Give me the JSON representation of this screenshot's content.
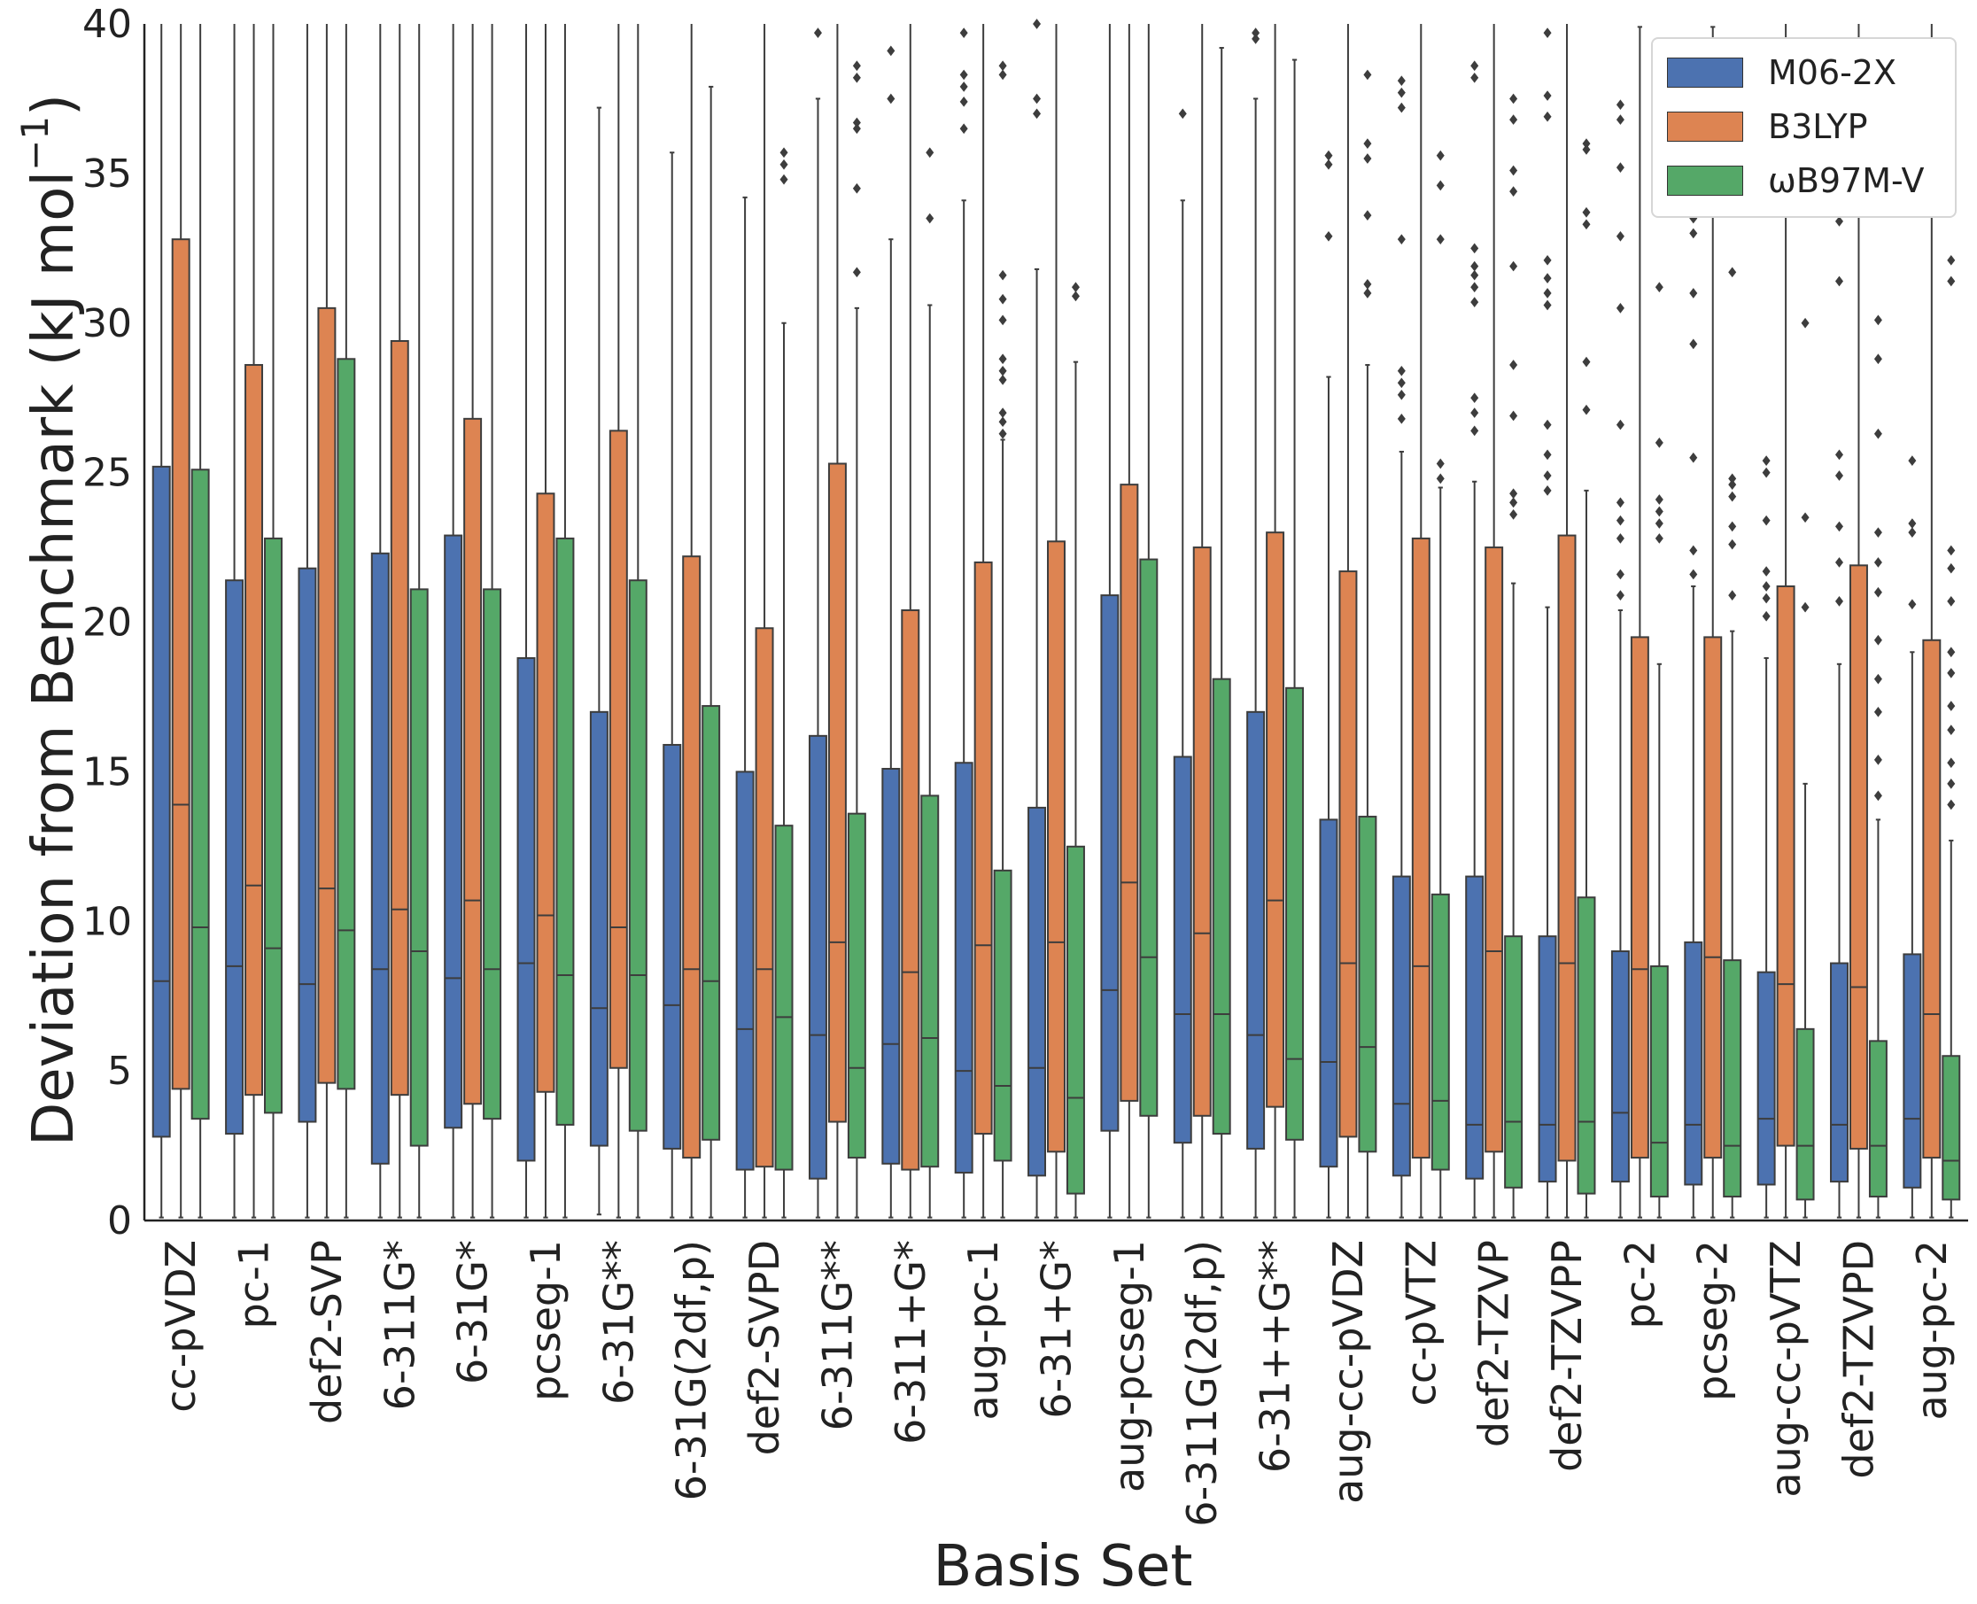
{
  "chart_data": {
    "type": "box",
    "title": "",
    "xlabel": "Basis Set",
    "ylabel": "Deviation from Benchmark (kJ mol",
    "ylabel_sup": "−1",
    "ylabel_close": ")",
    "ylim": [
      0,
      40
    ],
    "yticks": [
      0,
      5,
      10,
      15,
      20,
      25,
      30,
      35,
      40
    ],
    "legend_position": "top-right",
    "categories": [
      "cc-pVDZ",
      "pc-1",
      "def2-SVP",
      "6-311G*",
      "6-31G*",
      "pcseg-1",
      "6-31G**",
      "6-31G(2df,p)",
      "def2-SVPD",
      "6-311G**",
      "6-311+G*",
      "aug-pc-1",
      "6-31+G*",
      "aug-pcseg-1",
      "6-311G(2df,p)",
      "6-31++G**",
      "aug-cc-pVDZ",
      "cc-pVTZ",
      "def2-TZVP",
      "def2-TZVPP",
      "pc-2",
      "pcseg-2",
      "aug-cc-pVTZ",
      "def2-TZVPD",
      "aug-pc-2"
    ],
    "series": [
      {
        "name": "M06-2X",
        "color": "#4c72b0",
        "boxes": [
          {
            "q1": 2.8,
            "median": 8.0,
            "q3": 25.2,
            "whisker_low": 0.1,
            "whisker_high": 40,
            "outliers": []
          },
          {
            "q1": 2.9,
            "median": 8.5,
            "q3": 21.4,
            "whisker_low": 0.1,
            "whisker_high": 40,
            "outliers": []
          },
          {
            "q1": 3.3,
            "median": 7.9,
            "q3": 21.8,
            "whisker_low": 0.1,
            "whisker_high": 40,
            "outliers": []
          },
          {
            "q1": 1.9,
            "median": 8.4,
            "q3": 22.3,
            "whisker_low": 0.1,
            "whisker_high": 40,
            "outliers": []
          },
          {
            "q1": 3.1,
            "median": 8.1,
            "q3": 22.9,
            "whisker_low": 0.1,
            "whisker_high": 40,
            "outliers": []
          },
          {
            "q1": 2.0,
            "median": 8.6,
            "q3": 18.8,
            "whisker_low": 0.1,
            "whisker_high": 40,
            "outliers": []
          },
          {
            "q1": 2.5,
            "median": 7.1,
            "q3": 17.0,
            "whisker_low": 0.2,
            "whisker_high": 37.2,
            "outliers": []
          },
          {
            "q1": 2.4,
            "median": 7.2,
            "q3": 15.9,
            "whisker_low": 0.1,
            "whisker_high": 35.7,
            "outliers": []
          },
          {
            "q1": 1.7,
            "median": 6.4,
            "q3": 15.0,
            "whisker_low": 0.1,
            "whisker_high": 34.2,
            "outliers": []
          },
          {
            "q1": 1.4,
            "median": 6.2,
            "q3": 16.2,
            "whisker_low": 0.1,
            "whisker_high": 37.5,
            "outliers": [
              39.7
            ]
          },
          {
            "q1": 1.9,
            "median": 5.9,
            "q3": 15.1,
            "whisker_low": 0.1,
            "whisker_high": 32.8,
            "outliers": [
              37.5,
              39.1
            ]
          },
          {
            "q1": 1.6,
            "median": 5.0,
            "q3": 15.3,
            "whisker_low": 0.1,
            "whisker_high": 34.1,
            "outliers": [
              36.5,
              37.4,
              37.9,
              38.3,
              39.7
            ]
          },
          {
            "q1": 1.5,
            "median": 5.1,
            "q3": 13.8,
            "whisker_low": 0.1,
            "whisker_high": 31.8,
            "outliers": [
              37.0,
              37.5,
              40.0
            ]
          },
          {
            "q1": 3.0,
            "median": 7.7,
            "q3": 20.9,
            "whisker_low": 0.1,
            "whisker_high": 40,
            "outliers": []
          },
          {
            "q1": 2.6,
            "median": 6.9,
            "q3": 15.5,
            "whisker_low": 0.1,
            "whisker_high": 34.1,
            "outliers": [
              37.0
            ]
          },
          {
            "q1": 2.4,
            "median": 6.2,
            "q3": 17.0,
            "whisker_low": 0.1,
            "whisker_high": 37.5,
            "outliers": [
              39.5,
              39.7
            ]
          },
          {
            "q1": 1.8,
            "median": 5.3,
            "q3": 13.4,
            "whisker_low": 0.1,
            "whisker_high": 28.2,
            "outliers": [
              32.9,
              35.3,
              35.6
            ]
          },
          {
            "q1": 1.5,
            "median": 3.9,
            "q3": 11.5,
            "whisker_low": 0.1,
            "whisker_high": 25.7,
            "outliers": [
              26.8,
              27.6,
              28.0,
              28.4,
              32.8,
              37.2,
              37.7,
              38.1
            ]
          },
          {
            "q1": 1.4,
            "median": 3.2,
            "q3": 11.5,
            "whisker_low": 0.1,
            "whisker_high": 24.7,
            "outliers": [
              26.4,
              27.0,
              27.5,
              30.7,
              31.2,
              31.6,
              31.9,
              32.5,
              38.2,
              38.6
            ]
          },
          {
            "q1": 1.3,
            "median": 3.2,
            "q3": 9.5,
            "whisker_low": 0.1,
            "whisker_high": 20.5,
            "outliers": [
              24.4,
              24.9,
              25.6,
              26.6,
              30.6,
              31.0,
              31.5,
              32.1,
              36.9,
              37.6,
              39.7
            ]
          },
          {
            "q1": 1.3,
            "median": 3.6,
            "q3": 9.0,
            "whisker_low": 0.1,
            "whisker_high": 20.4,
            "outliers": [
              20.9,
              21.6,
              22.8,
              23.4,
              24.0,
              26.6,
              30.5,
              32.9,
              35.2,
              36.8,
              37.3
            ]
          },
          {
            "q1": 1.2,
            "median": 3.2,
            "q3": 9.3,
            "whisker_low": 0.1,
            "whisker_high": 21.2,
            "outliers": [
              21.6,
              22.4,
              25.5,
              29.3,
              31.0,
              33.0,
              33.5,
              35.4,
              36.1
            ]
          },
          {
            "q1": 1.2,
            "median": 3.4,
            "q3": 8.3,
            "whisker_low": 0.1,
            "whisker_high": 18.8,
            "outliers": [
              20.2,
              20.8,
              21.2,
              21.7,
              23.4,
              25.0,
              25.4
            ]
          },
          {
            "q1": 1.3,
            "median": 3.2,
            "q3": 8.6,
            "whisker_low": 0.1,
            "whisker_high": 18.6,
            "outliers": [
              20.7,
              22.0,
              23.2,
              24.9,
              25.6,
              31.4,
              33.4
            ]
          },
          {
            "q1": 1.1,
            "median": 3.4,
            "q3": 8.9,
            "whisker_low": 0.1,
            "whisker_high": 19.0,
            "outliers": [
              20.6,
              23.0,
              23.3,
              25.4
            ]
          }
        ]
      },
      {
        "name": "B3LYP",
        "color": "#dd8452",
        "boxes": [
          {
            "q1": 4.4,
            "median": 13.9,
            "q3": 32.8,
            "whisker_low": 0.1,
            "whisker_high": 40,
            "outliers": []
          },
          {
            "q1": 4.2,
            "median": 11.2,
            "q3": 28.6,
            "whisker_low": 0.1,
            "whisker_high": 40,
            "outliers": []
          },
          {
            "q1": 4.6,
            "median": 11.1,
            "q3": 30.5,
            "whisker_low": 0.1,
            "whisker_high": 40,
            "outliers": []
          },
          {
            "q1": 4.2,
            "median": 10.4,
            "q3": 29.4,
            "whisker_low": 0.1,
            "whisker_high": 40,
            "outliers": []
          },
          {
            "q1": 3.9,
            "median": 10.7,
            "q3": 26.8,
            "whisker_low": 0.1,
            "whisker_high": 40,
            "outliers": []
          },
          {
            "q1": 4.3,
            "median": 10.2,
            "q3": 24.3,
            "whisker_low": 0.1,
            "whisker_high": 40,
            "outliers": []
          },
          {
            "q1": 5.1,
            "median": 9.8,
            "q3": 26.4,
            "whisker_low": 0.1,
            "whisker_high": 40,
            "outliers": []
          },
          {
            "q1": 2.1,
            "median": 8.4,
            "q3": 22.2,
            "whisker_low": 0.1,
            "whisker_high": 40,
            "outliers": []
          },
          {
            "q1": 1.8,
            "median": 8.4,
            "q3": 19.8,
            "whisker_low": 0.1,
            "whisker_high": 40,
            "outliers": []
          },
          {
            "q1": 3.3,
            "median": 9.3,
            "q3": 25.3,
            "whisker_low": 0.1,
            "whisker_high": 40,
            "outliers": []
          },
          {
            "q1": 1.7,
            "median": 8.3,
            "q3": 20.4,
            "whisker_low": 0.1,
            "whisker_high": 40,
            "outliers": []
          },
          {
            "q1": 2.9,
            "median": 9.2,
            "q3": 22.0,
            "whisker_low": 0.1,
            "whisker_high": 40,
            "outliers": []
          },
          {
            "q1": 2.3,
            "median": 9.3,
            "q3": 22.7,
            "whisker_low": 0.1,
            "whisker_high": 40,
            "outliers": []
          },
          {
            "q1": 4.0,
            "median": 11.3,
            "q3": 24.6,
            "whisker_low": 0.1,
            "whisker_high": 40,
            "outliers": []
          },
          {
            "q1": 3.5,
            "median": 9.6,
            "q3": 22.5,
            "whisker_low": 0.1,
            "whisker_high": 40,
            "outliers": []
          },
          {
            "q1": 3.8,
            "median": 10.7,
            "q3": 23.0,
            "whisker_low": 0.1,
            "whisker_high": 40,
            "outliers": []
          },
          {
            "q1": 2.8,
            "median": 8.6,
            "q3": 21.7,
            "whisker_low": 0.1,
            "whisker_high": 40,
            "outliers": []
          },
          {
            "q1": 2.1,
            "median": 8.5,
            "q3": 22.8,
            "whisker_low": 0.1,
            "whisker_high": 40,
            "outliers": []
          },
          {
            "q1": 2.3,
            "median": 9.0,
            "q3": 22.5,
            "whisker_low": 0.1,
            "whisker_high": 40,
            "outliers": []
          },
          {
            "q1": 2.0,
            "median": 8.6,
            "q3": 22.9,
            "whisker_low": 0.1,
            "whisker_high": 40,
            "outliers": []
          },
          {
            "q1": 2.1,
            "median": 8.4,
            "q3": 19.5,
            "whisker_low": 0.1,
            "whisker_high": 39.9,
            "outliers": []
          },
          {
            "q1": 2.1,
            "median": 8.8,
            "q3": 19.5,
            "whisker_low": 0.1,
            "whisker_high": 39.9,
            "outliers": []
          },
          {
            "q1": 2.5,
            "median": 7.9,
            "q3": 21.2,
            "whisker_low": 0.1,
            "whisker_high": 40,
            "outliers": []
          },
          {
            "q1": 2.4,
            "median": 7.8,
            "q3": 21.9,
            "whisker_low": 0.1,
            "whisker_high": 40,
            "outliers": []
          },
          {
            "q1": 2.1,
            "median": 6.9,
            "q3": 19.4,
            "whisker_low": 0.1,
            "whisker_high": 40,
            "outliers": []
          }
        ]
      },
      {
        "name": "ωB97M-V",
        "color": "#55a868",
        "boxes": [
          {
            "q1": 3.4,
            "median": 9.8,
            "q3": 25.1,
            "whisker_low": 0.1,
            "whisker_high": 40,
            "outliers": []
          },
          {
            "q1": 3.6,
            "median": 9.1,
            "q3": 22.8,
            "whisker_low": 0.1,
            "whisker_high": 40,
            "outliers": []
          },
          {
            "q1": 4.4,
            "median": 9.7,
            "q3": 28.8,
            "whisker_low": 0.1,
            "whisker_high": 40,
            "outliers": []
          },
          {
            "q1": 2.5,
            "median": 9.0,
            "q3": 21.1,
            "whisker_low": 0.1,
            "whisker_high": 40,
            "outliers": []
          },
          {
            "q1": 3.4,
            "median": 8.4,
            "q3": 21.1,
            "whisker_low": 0.1,
            "whisker_high": 40,
            "outliers": []
          },
          {
            "q1": 3.2,
            "median": 8.2,
            "q3": 22.8,
            "whisker_low": 0.1,
            "whisker_high": 40,
            "outliers": []
          },
          {
            "q1": 3.0,
            "median": 8.2,
            "q3": 21.4,
            "whisker_low": 0.1,
            "whisker_high": 40,
            "outliers": []
          },
          {
            "q1": 2.7,
            "median": 8.0,
            "q3": 17.2,
            "whisker_low": 0.1,
            "whisker_high": 37.9,
            "outliers": []
          },
          {
            "q1": 1.7,
            "median": 6.8,
            "q3": 13.2,
            "whisker_low": 0.1,
            "whisker_high": 30.0,
            "outliers": [
              34.8,
              35.3,
              35.7
            ]
          },
          {
            "q1": 2.1,
            "median": 5.1,
            "q3": 13.6,
            "whisker_low": 0.1,
            "whisker_high": 30.5,
            "outliers": [
              31.7,
              34.5,
              36.5,
              36.7,
              38.2,
              38.6
            ]
          },
          {
            "q1": 1.8,
            "median": 6.1,
            "q3": 14.2,
            "whisker_low": 0.1,
            "whisker_high": 30.6,
            "outliers": [
              33.5,
              35.7
            ]
          },
          {
            "q1": 2.0,
            "median": 4.5,
            "q3": 11.7,
            "whisker_low": 0.1,
            "whisker_high": 26.1,
            "outliers": [
              26.3,
              26.7,
              27.0,
              28.1,
              28.4,
              28.8,
              30.1,
              30.8,
              31.6,
              38.3,
              38.6
            ]
          },
          {
            "q1": 0.9,
            "median": 4.1,
            "q3": 12.5,
            "whisker_low": 0.1,
            "whisker_high": 28.7,
            "outliers": [
              30.9,
              31.2
            ]
          },
          {
            "q1": 3.5,
            "median": 8.8,
            "q3": 22.1,
            "whisker_low": 0.1,
            "whisker_high": 40,
            "outliers": []
          },
          {
            "q1": 2.9,
            "median": 6.9,
            "q3": 18.1,
            "whisker_low": 0.1,
            "whisker_high": 39.2,
            "outliers": []
          },
          {
            "q1": 2.7,
            "median": 5.4,
            "q3": 17.8,
            "whisker_low": 0.1,
            "whisker_high": 38.8,
            "outliers": []
          },
          {
            "q1": 2.3,
            "median": 5.8,
            "q3": 13.5,
            "whisker_low": 0.1,
            "whisker_high": 28.6,
            "outliers": [
              31.0,
              31.3,
              33.6,
              35.5,
              36.0,
              38.3
            ]
          },
          {
            "q1": 1.7,
            "median": 4.0,
            "q3": 10.9,
            "whisker_low": 0.1,
            "whisker_high": 24.5,
            "outliers": [
              24.8,
              25.3,
              32.8,
              34.6,
              35.6
            ]
          },
          {
            "q1": 1.1,
            "median": 3.3,
            "q3": 9.5,
            "whisker_low": 0.1,
            "whisker_high": 21.3,
            "outliers": [
              23.6,
              24.0,
              24.3,
              26.9,
              28.6,
              31.9,
              34.4,
              35.1,
              36.8,
              37.5
            ]
          },
          {
            "q1": 0.9,
            "median": 3.3,
            "q3": 10.8,
            "whisker_low": 0.1,
            "whisker_high": 24.4,
            "outliers": [
              27.1,
              28.7,
              33.3,
              33.7,
              35.8,
              36.0
            ]
          },
          {
            "q1": 0.8,
            "median": 2.6,
            "q3": 8.5,
            "whisker_low": 0.1,
            "whisker_high": 18.6,
            "outliers": [
              22.8,
              23.3,
              23.7,
              24.1,
              26.0,
              31.2
            ]
          },
          {
            "q1": 0.8,
            "median": 2.5,
            "q3": 8.7,
            "whisker_low": 0.1,
            "whisker_high": 19.7,
            "outliers": [
              20.9,
              22.6,
              23.2,
              24.2,
              24.6,
              24.8,
              31.7
            ]
          },
          {
            "q1": 0.7,
            "median": 2.5,
            "q3": 6.4,
            "whisker_low": 0.1,
            "whisker_high": 14.6,
            "outliers": [
              20.5,
              23.5,
              30.0
            ]
          },
          {
            "q1": 0.8,
            "median": 2.5,
            "q3": 6.0,
            "whisker_low": 0.1,
            "whisker_high": 13.4,
            "outliers": [
              14.2,
              15.4,
              17.0,
              18.1,
              19.4,
              21.0,
              22.0,
              23.0,
              26.3,
              28.8,
              30.1
            ]
          },
          {
            "q1": 0.7,
            "median": 2.0,
            "q3": 5.5,
            "whisker_low": 0.1,
            "whisker_high": 12.7,
            "outliers": [
              13.9,
              14.6,
              15.3,
              16.4,
              17.2,
              18.3,
              19.0,
              20.7,
              21.8,
              22.4,
              31.4,
              32.1
            ]
          }
        ]
      }
    ]
  }
}
